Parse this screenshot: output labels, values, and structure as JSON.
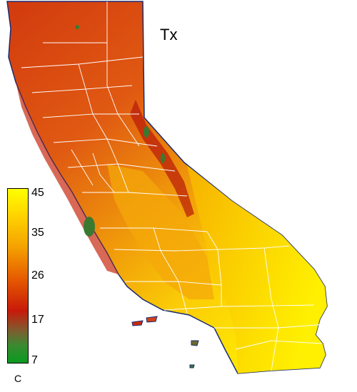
{
  "map": {
    "title": "Tx",
    "legend": {
      "ticks": [
        "45",
        "35",
        "26",
        "17",
        "7"
      ],
      "unit": "C"
    }
  }
}
